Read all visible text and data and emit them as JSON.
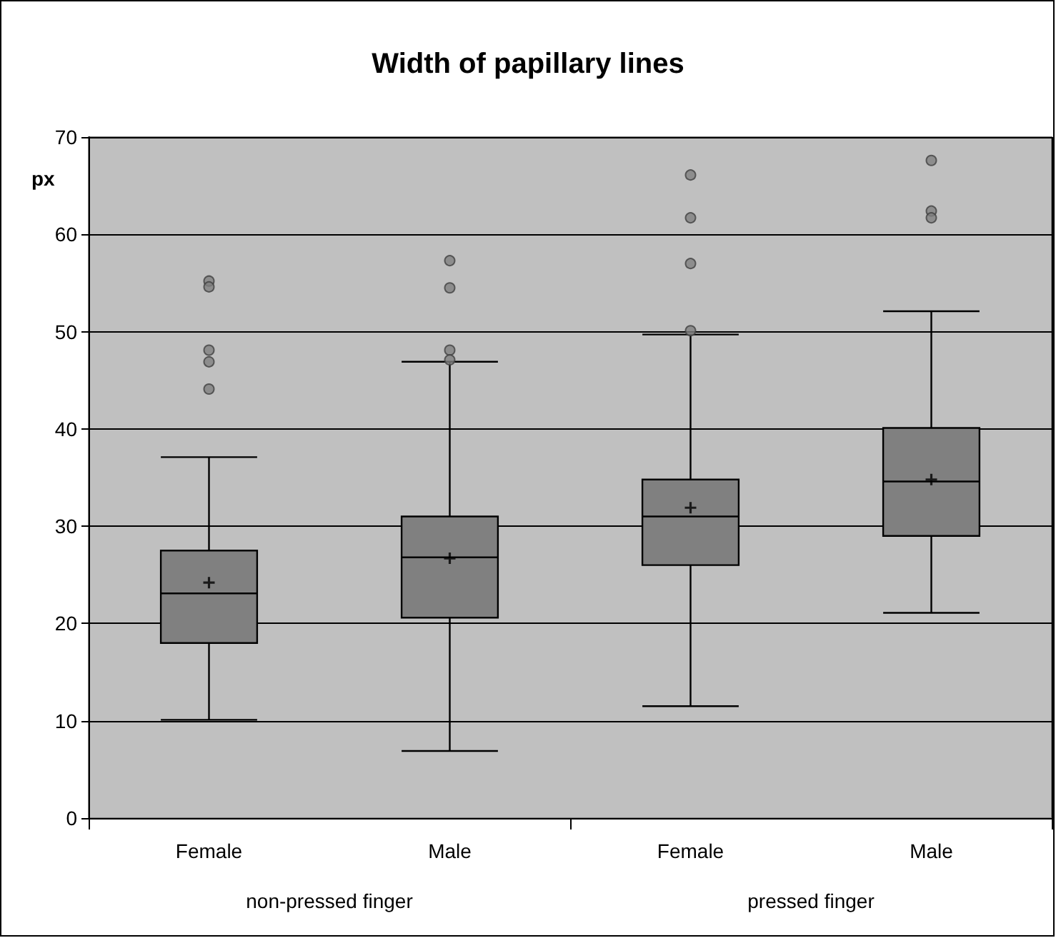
{
  "chart_data": {
    "type": "box",
    "title": "Width of papillary lines",
    "ylabel": "px",
    "categories": [
      "Female",
      "Male",
      "Female",
      "Male"
    ],
    "boxes": [
      {
        "low": 10.1,
        "q1": 18.0,
        "median": 23.1,
        "q3": 27.5,
        "high": 37.1,
        "mean": 24.2,
        "outliers": [
          55.2,
          54.6,
          48.1,
          46.9,
          44.1
        ]
      },
      {
        "low": 6.9,
        "q1": 20.6,
        "median": 26.8,
        "q3": 31.0,
        "high": 46.9,
        "mean": 26.7,
        "outliers": [
          57.3,
          54.5,
          48.1,
          47.1
        ]
      },
      {
        "low": 11.5,
        "q1": 26.0,
        "median": 31.0,
        "q3": 34.8,
        "high": 49.7,
        "mean": 31.9,
        "outliers": [
          66.1,
          61.7,
          57.0,
          50.1
        ]
      },
      {
        "low": 21.1,
        "q1": 29.0,
        "median": 34.6,
        "q3": 40.1,
        "high": 52.1,
        "mean": 34.8,
        "outliers": [
          67.6,
          62.4,
          61.7
        ]
      }
    ],
    "color": "#808080",
    "ylim": [
      0,
      70
    ],
    "yticks": [
      0,
      10,
      20,
      30,
      40,
      50,
      60,
      70
    ],
    "grid": "y",
    "annotations": [
      "non-pressed finger",
      "pressed finger"
    ]
  }
}
